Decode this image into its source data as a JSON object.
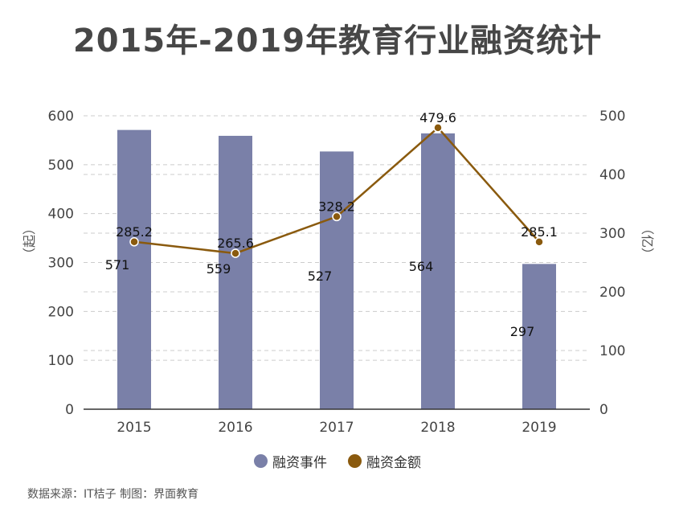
{
  "title": "2015年-2019年教育行业融资统计",
  "source": "数据来源：IT桔子 制图：界面教育",
  "colors": {
    "bar": "#7a80a8",
    "line": "#8a5a0e",
    "grid": "#cccccc",
    "axis": "#333333"
  },
  "chart_data": {
    "type": "bar+line",
    "categories": [
      "2015",
      "2016",
      "2017",
      "2018",
      "2019"
    ],
    "series": [
      {
        "name": "融资事件",
        "type": "bar",
        "axis": "left",
        "values": [
          571,
          559,
          527,
          564,
          297
        ],
        "labels": [
          "571",
          "559",
          "527",
          "564",
          "297"
        ]
      },
      {
        "name": "融资金额",
        "type": "line",
        "axis": "right",
        "values": [
          285.2,
          265.6,
          328.2,
          479.6,
          285.1
        ],
        "labels": [
          "285.2",
          "265.6",
          "328.2",
          "479.6",
          "285.1"
        ]
      }
    ],
    "left_axis": {
      "label": "（起）",
      "min": 0,
      "max": 600,
      "ticks": [
        "0",
        "100",
        "200",
        "300",
        "400",
        "500",
        "600"
      ]
    },
    "right_axis": {
      "label": "（亿）",
      "min": 0,
      "max": 500,
      "ticks": [
        "0",
        "100",
        "200",
        "300",
        "400",
        "500"
      ]
    },
    "grid": true,
    "legend": "bottom-center"
  }
}
